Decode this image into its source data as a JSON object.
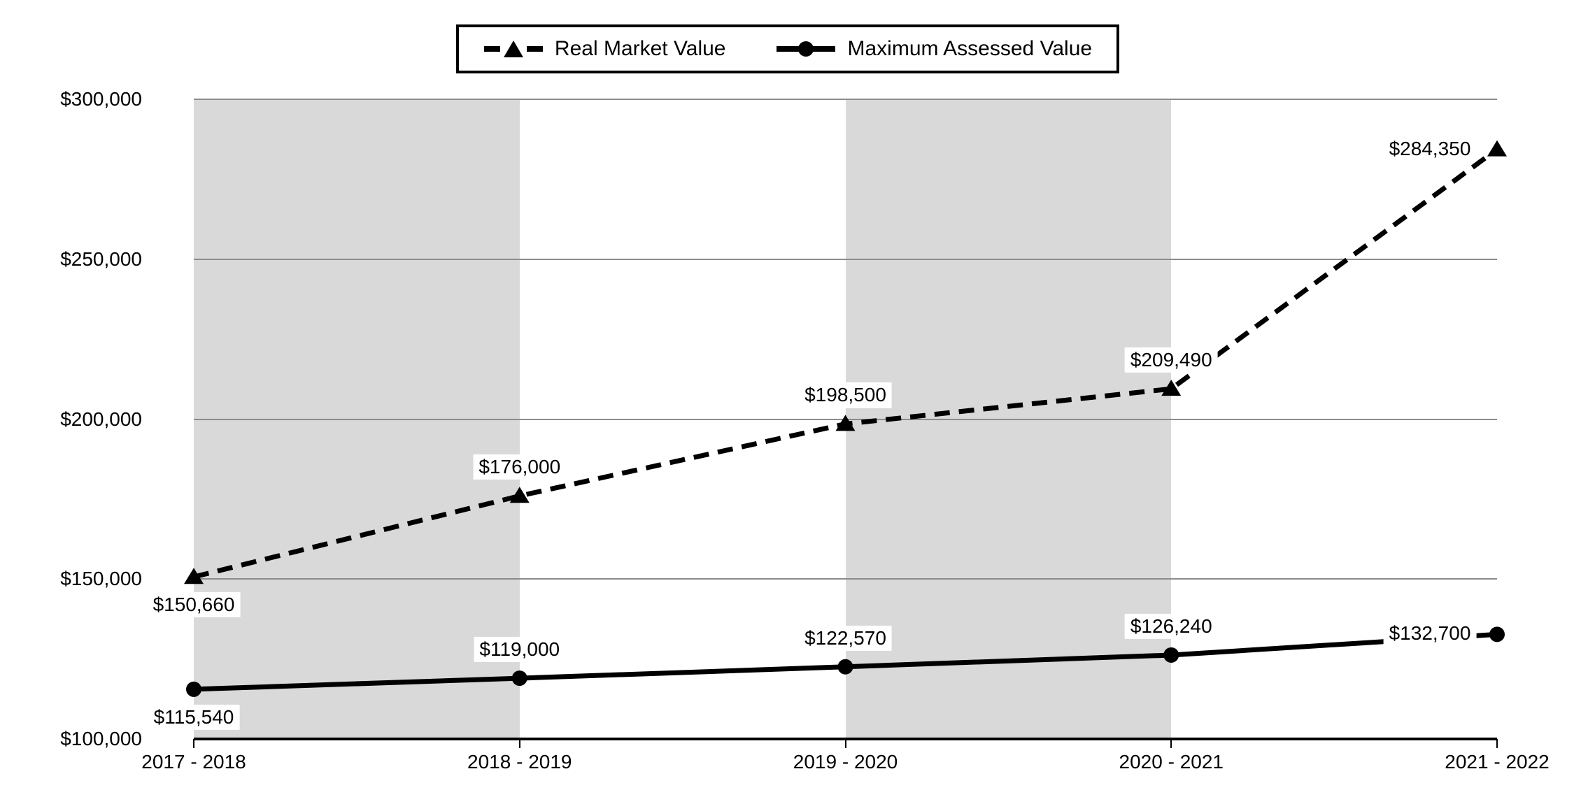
{
  "chart_data": {
    "type": "line",
    "title": "",
    "xlabel": "",
    "ylabel": "",
    "categories": [
      "2017 - 2018",
      "2018 - 2019",
      "2019 - 2020",
      "2020 - 2021",
      "2021 - 2022"
    ],
    "series": [
      {
        "name": "Real Market Value",
        "line_style": "dashed",
        "marker": "triangle",
        "values": [
          150660,
          176000,
          198500,
          209490,
          284350
        ],
        "data_labels": [
          "$150,660",
          "$176,000",
          "$198,500",
          "$209,490",
          "$284,350"
        ],
        "label_anchors": [
          "below",
          "above",
          "above",
          "above",
          "left"
        ]
      },
      {
        "name": "Maximum Assessed Value",
        "line_style": "solid",
        "marker": "circle",
        "values": [
          115540,
          119000,
          122570,
          126240,
          132700
        ],
        "data_labels": [
          "$115,540",
          "$119,000",
          "$122,570",
          "$126,240",
          "$132,700"
        ],
        "label_anchors": [
          "below",
          "above",
          "above",
          "above",
          "left"
        ]
      }
    ],
    "y_axis": {
      "min": 100000,
      "max": 300000,
      "ticks": [
        {
          "value": 300000,
          "label": "$300,000"
        },
        {
          "value": 250000,
          "label": "$250,000"
        },
        {
          "value": 200000,
          "label": "$200,000"
        },
        {
          "value": 150000,
          "label": "$150,000"
        },
        {
          "value": 100000,
          "label": "$100,000"
        }
      ]
    },
    "grid": "horizontal",
    "legend_position": "top",
    "shaded_band_category_ranges": [
      [
        0,
        1
      ],
      [
        2,
        3
      ]
    ],
    "colors": {
      "series": "#000000",
      "band": "#d9d9d9",
      "gridline": "#8c8c8c",
      "label_background": "#ffffff",
      "axis": "#000000"
    }
  }
}
